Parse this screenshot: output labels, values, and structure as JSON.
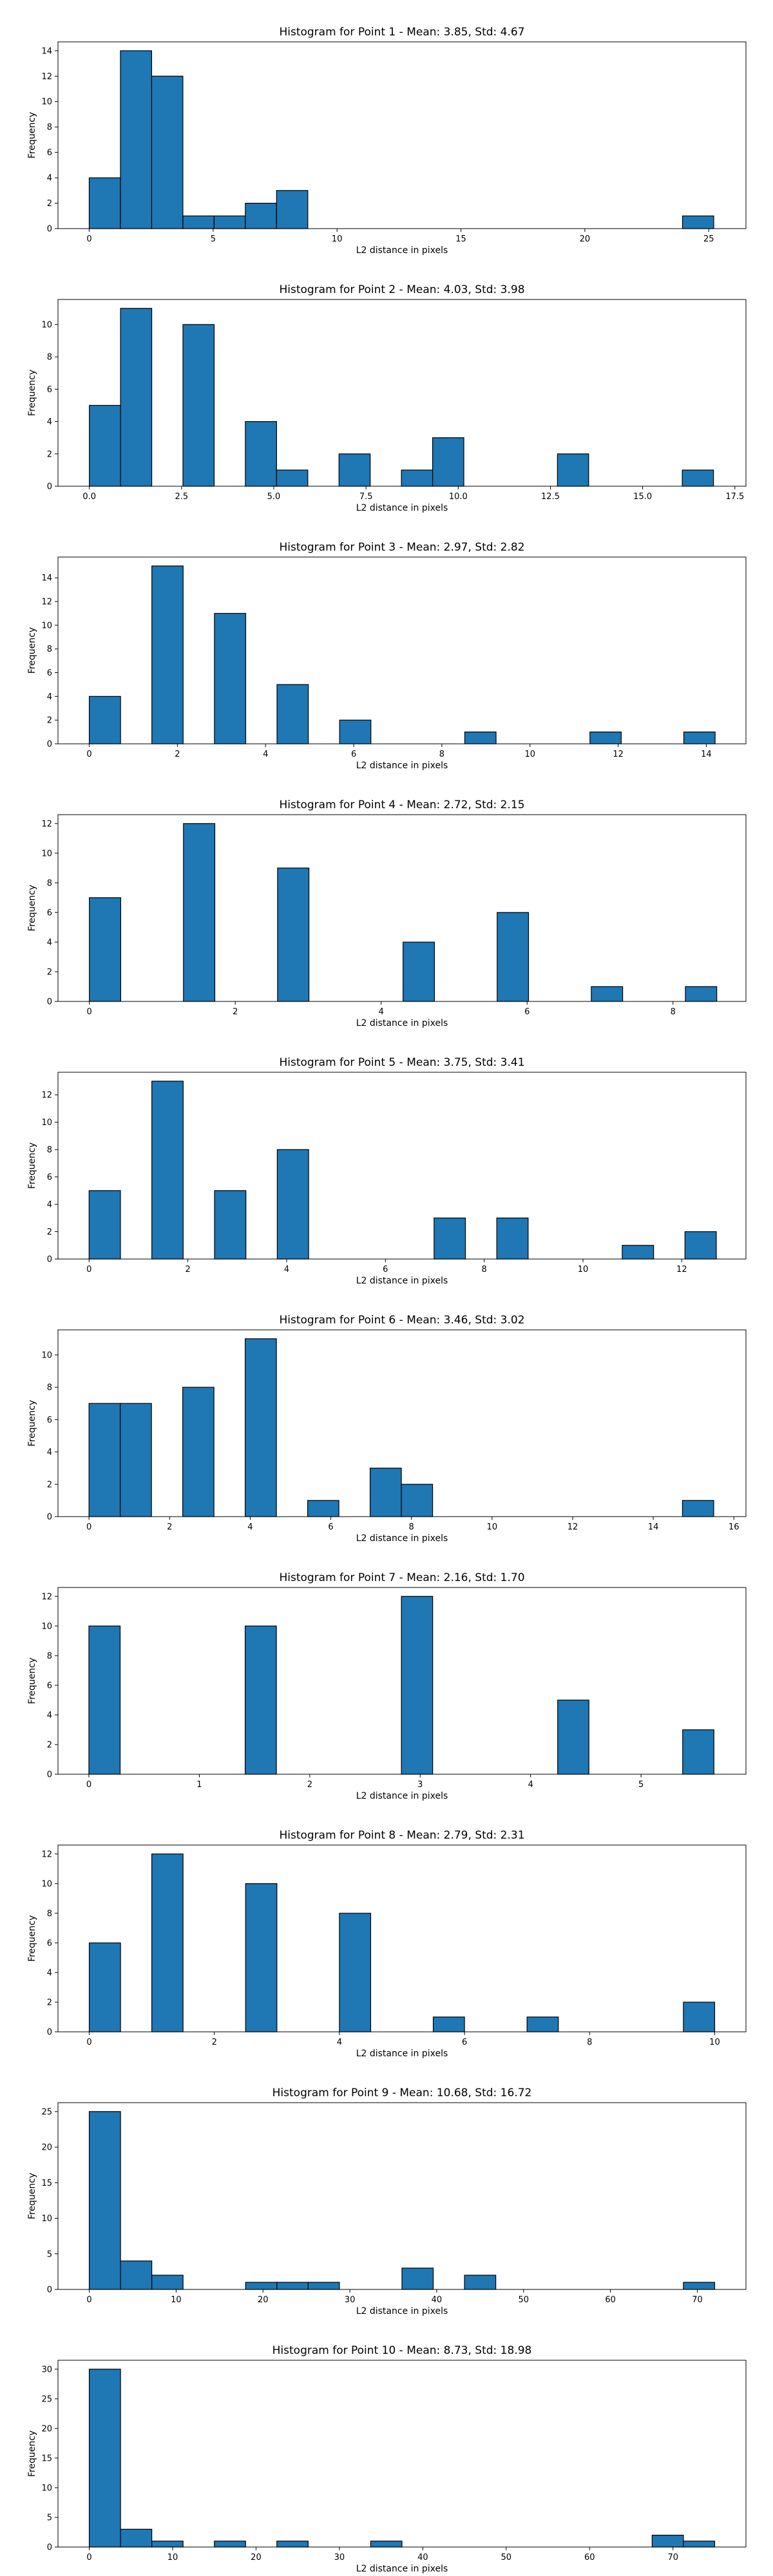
{
  "chart_data": [
    {
      "type": "bar",
      "title": "Histogram for Point 1 - Mean: 3.85, Std: 4.67",
      "xlabel": "L2 distance in pixels",
      "ylabel": "Frequency",
      "xlim": [
        -1.26,
        26.5
      ],
      "ylim": [
        0,
        14.7
      ],
      "xticks": [
        0,
        5,
        10,
        15,
        20,
        25
      ],
      "xtick_labels": [
        "0",
        "5",
        "10",
        "15",
        "20",
        "25"
      ],
      "yticks": [
        0,
        2,
        4,
        6,
        8,
        10,
        12,
        14
      ],
      "ytick_labels": [
        "0",
        "2",
        "4",
        "6",
        "8",
        "10",
        "12",
        "14"
      ],
      "bin_start": 0,
      "bin_width": 1.26,
      "counts": [
        4,
        14,
        12,
        1,
        1,
        2,
        3,
        0,
        0,
        0,
        0,
        0,
        0,
        0,
        0,
        0,
        0,
        0,
        0,
        1
      ]
    },
    {
      "type": "bar",
      "title": "Histogram for Point 2 - Mean: 4.03, Std: 3.98",
      "xlabel": "L2 distance in pixels",
      "ylabel": "Frequency",
      "xlim": [
        -0.85,
        17.8
      ],
      "ylim": [
        0,
        11.55
      ],
      "xticks": [
        0,
        2.5,
        5,
        7.5,
        10,
        12.5,
        15,
        17.5
      ],
      "xtick_labels": [
        "0.0",
        "2.5",
        "5.0",
        "7.5",
        "10.0",
        "12.5",
        "15.0",
        "17.5"
      ],
      "yticks": [
        0,
        2,
        4,
        6,
        8,
        10
      ],
      "ytick_labels": [
        "0",
        "2",
        "4",
        "6",
        "8",
        "10"
      ],
      "bin_start": 0,
      "bin_width": 0.846,
      "counts": [
        5,
        11,
        0,
        10,
        0,
        4,
        1,
        0,
        2,
        0,
        1,
        3,
        0,
        0,
        0,
        2,
        0,
        0,
        0,
        1
      ]
    },
    {
      "type": "bar",
      "title": "Histogram for Point 3 - Mean: 2.97, Std: 2.82",
      "xlabel": "L2 distance in pixels",
      "ylabel": "Frequency",
      "xlim": [
        -0.71,
        14.9
      ],
      "ylim": [
        0,
        15.75
      ],
      "xticks": [
        0,
        2,
        4,
        6,
        8,
        10,
        12,
        14
      ],
      "xtick_labels": [
        "0",
        "2",
        "4",
        "6",
        "8",
        "10",
        "12",
        "14"
      ],
      "yticks": [
        0,
        2,
        4,
        6,
        8,
        10,
        12,
        14
      ],
      "ytick_labels": [
        "0",
        "2",
        "4",
        "6",
        "8",
        "10",
        "12",
        "14"
      ],
      "bin_start": 0,
      "bin_width": 0.71,
      "counts": [
        4,
        0,
        15,
        0,
        11,
        0,
        5,
        0,
        2,
        0,
        0,
        0,
        1,
        0,
        0,
        0,
        1,
        0,
        0,
        1
      ]
    },
    {
      "type": "bar",
      "title": "Histogram for Point 4 - Mean: 2.72, Std: 2.15",
      "xlabel": "L2 distance in pixels",
      "ylabel": "Frequency",
      "xlim": [
        -0.43,
        9.0
      ],
      "ylim": [
        0,
        12.6
      ],
      "xticks": [
        0,
        2,
        4,
        6,
        8
      ],
      "xtick_labels": [
        "0",
        "2",
        "4",
        "6",
        "8"
      ],
      "yticks": [
        0,
        2,
        4,
        6,
        8,
        10,
        12
      ],
      "ytick_labels": [
        "0",
        "2",
        "4",
        "6",
        "8",
        "10",
        "12"
      ],
      "bin_start": 0,
      "bin_width": 0.43,
      "counts": [
        7,
        0,
        0,
        12,
        0,
        0,
        9,
        0,
        0,
        0,
        4,
        0,
        0,
        6,
        0,
        0,
        1,
        0,
        0,
        1
      ]
    },
    {
      "type": "bar",
      "title": "Histogram for Point 5 - Mean: 3.75, Std: 3.41",
      "xlabel": "L2 distance in pixels",
      "ylabel": "Frequency",
      "xlim": [
        -0.63,
        13.3
      ],
      "ylim": [
        0,
        13.65
      ],
      "xticks": [
        0,
        2,
        4,
        6,
        8,
        10,
        12
      ],
      "xtick_labels": [
        "0",
        "2",
        "4",
        "6",
        "8",
        "10",
        "12"
      ],
      "yticks": [
        0,
        2,
        4,
        6,
        8,
        10,
        12
      ],
      "ytick_labels": [
        "0",
        "2",
        "4",
        "6",
        "8",
        "10",
        "12"
      ],
      "bin_start": 0,
      "bin_width": 0.635,
      "counts": [
        5,
        0,
        13,
        0,
        5,
        0,
        8,
        0,
        0,
        0,
        0,
        3,
        0,
        3,
        0,
        0,
        0,
        1,
        0,
        2
      ]
    },
    {
      "type": "bar",
      "title": "Histogram for Point 6 - Mean: 3.46, Std: 3.02",
      "xlabel": "L2 distance in pixels",
      "ylabel": "Frequency",
      "xlim": [
        -0.77,
        16.3
      ],
      "ylim": [
        0,
        11.55
      ],
      "xticks": [
        0,
        2,
        4,
        6,
        8,
        10,
        12,
        14,
        16
      ],
      "xtick_labels": [
        "0",
        "2",
        "4",
        "6",
        "8",
        "10",
        "12",
        "14",
        "16"
      ],
      "yticks": [
        0,
        2,
        4,
        6,
        8,
        10
      ],
      "ytick_labels": [
        "0",
        "2",
        "4",
        "6",
        "8",
        "10"
      ],
      "bin_start": 0,
      "bin_width": 0.775,
      "counts": [
        7,
        7,
        0,
        8,
        0,
        11,
        0,
        1,
        0,
        3,
        2,
        0,
        0,
        0,
        0,
        0,
        0,
        0,
        0,
        1
      ]
    },
    {
      "type": "bar",
      "title": "Histogram for Point 7 - Mean: 2.16, Std: 1.70",
      "xlabel": "L2 distance in pixels",
      "ylabel": "Frequency",
      "xlim": [
        -0.28,
        5.95
      ],
      "ylim": [
        0,
        12.6
      ],
      "xticks": [
        0,
        1,
        2,
        3,
        4,
        5
      ],
      "xtick_labels": [
        "0",
        "1",
        "2",
        "3",
        "4",
        "5"
      ],
      "yticks": [
        0,
        2,
        4,
        6,
        8,
        10,
        12
      ],
      "ytick_labels": [
        "0",
        "2",
        "4",
        "6",
        "8",
        "10",
        "12"
      ],
      "bin_start": 0,
      "bin_width": 0.283,
      "counts": [
        10,
        0,
        0,
        0,
        0,
        10,
        0,
        0,
        0,
        0,
        12,
        0,
        0,
        0,
        0,
        5,
        0,
        0,
        0,
        3
      ]
    },
    {
      "type": "bar",
      "title": "Histogram for Point 8 - Mean: 2.79, Std: 2.31",
      "xlabel": "L2 distance in pixels",
      "ylabel": "Frequency",
      "xlim": [
        -0.5,
        10.5
      ],
      "ylim": [
        0,
        12.6
      ],
      "xticks": [
        0,
        2,
        4,
        6,
        8,
        10
      ],
      "xtick_labels": [
        "0",
        "2",
        "4",
        "6",
        "8",
        "10"
      ],
      "yticks": [
        0,
        2,
        4,
        6,
        8,
        10,
        12
      ],
      "ytick_labels": [
        "0",
        "2",
        "4",
        "6",
        "8",
        "10",
        "12"
      ],
      "bin_start": 0,
      "bin_width": 0.5,
      "counts": [
        6,
        0,
        12,
        0,
        0,
        10,
        0,
        0,
        8,
        0,
        0,
        1,
        0,
        0,
        1,
        0,
        0,
        0,
        0,
        2
      ]
    },
    {
      "type": "bar",
      "title": "Histogram for Point 9 - Mean: 10.68, Std: 16.72",
      "xlabel": "L2 distance in pixels",
      "ylabel": "Frequency",
      "xlim": [
        -3.6,
        75.6
      ],
      "ylim": [
        0,
        26.25
      ],
      "xticks": [
        0,
        10,
        20,
        30,
        40,
        50,
        60,
        70
      ],
      "xtick_labels": [
        "0",
        "10",
        "20",
        "30",
        "40",
        "50",
        "60",
        "70"
      ],
      "yticks": [
        0,
        5,
        10,
        15,
        20,
        25
      ],
      "ytick_labels": [
        "0",
        "5",
        "10",
        "15",
        "20",
        "25"
      ],
      "bin_start": 0,
      "bin_width": 3.6,
      "counts": [
        25,
        4,
        2,
        0,
        0,
        1,
        1,
        1,
        0,
        0,
        3,
        0,
        2,
        0,
        0,
        0,
        0,
        0,
        0,
        1
      ]
    },
    {
      "type": "bar",
      "title": "Histogram for Point 10 - Mean: 8.73, Std: 18.98",
      "xlabel": "L2 distance in pixels",
      "ylabel": "Frequency",
      "xlim": [
        -3.75,
        78.75
      ],
      "ylim": [
        0,
        31.5
      ],
      "xticks": [
        0,
        10,
        20,
        30,
        40,
        50,
        60,
        70
      ],
      "xtick_labels": [
        "0",
        "10",
        "20",
        "30",
        "40",
        "50",
        "60",
        "70"
      ],
      "yticks": [
        0,
        5,
        10,
        15,
        20,
        25,
        30
      ],
      "ytick_labels": [
        "0",
        "5",
        "10",
        "15",
        "20",
        "25",
        "30"
      ],
      "bin_start": 0,
      "bin_width": 3.75,
      "counts": [
        30,
        3,
        1,
        0,
        1,
        0,
        1,
        0,
        0,
        1,
        0,
        0,
        0,
        0,
        0,
        0,
        0,
        0,
        2,
        1
      ]
    }
  ]
}
